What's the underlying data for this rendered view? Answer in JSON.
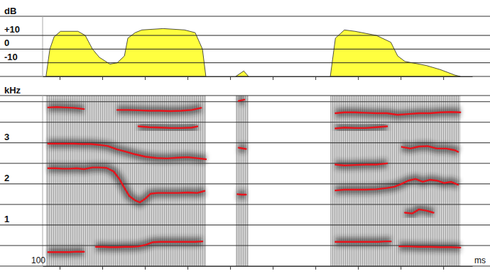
{
  "chart_data": [
    {
      "type": "area",
      "ylabel": "dB",
      "color": "#ffff3f",
      "grid": true,
      "tick_labels": "y",
      "xlim": [
        60,
        1068
      ],
      "xticks": [
        100,
        200,
        300,
        400,
        500,
        600,
        700,
        800,
        900,
        1000
      ],
      "ylim": [
        -20,
        24
      ],
      "yticks": [
        -10,
        0,
        {
          "value": 10,
          "label": "+10"
        }
      ],
      "x": [
        68,
        77,
        87,
        102,
        143,
        160,
        177,
        193,
        218,
        235,
        252,
        260,
        277,
        293,
        343,
        393,
        418,
        435,
        443,
        480,
        513,
        532,
        543,
        640,
        735,
        747,
        768,
        793,
        843,
        877,
        893,
        910,
        960,
        993,
        1027,
        1040
      ],
      "values": [
        -20,
        0,
        9,
        13,
        13,
        10,
        0,
        -6,
        -11,
        -10,
        -5,
        8,
        12,
        14,
        15,
        14,
        12,
        0,
        -20,
        null,
        -20,
        -16,
        -20,
        null,
        -20,
        8,
        14,
        13,
        10,
        5,
        -5,
        -9,
        -12,
        -15,
        -19,
        -20
      ]
    },
    {
      "type": "line",
      "ylabel": "kHz",
      "xlabel": "ms",
      "annotations": [
        "100"
      ],
      "color": "#e8141c",
      "grid": true,
      "tick_labels": "y",
      "xlim": [
        60,
        1068
      ],
      "xticks": [
        100,
        200,
        300,
        400,
        500,
        600,
        700,
        800,
        900,
        1000
      ],
      "ylim": [
        0,
        4.15
      ],
      "yticks": [
        1,
        2,
        3
      ],
      "minor_yticks": [
        0.5,
        1.5,
        2.5,
        3.5,
        4
      ],
      "series": [
        {
          "x": [
            73,
            90,
            107,
            123,
            140,
            157,
            170,
            185,
            202,
            218,
            235,
            252,
            268,
            285,
            302,
            318,
            335,
            352,
            368,
            385,
            402,
            418,
            435,
            590,
            747,
            763,
            780,
            797,
            813,
            830,
            847,
            863,
            877,
            887,
            897,
            918,
            943,
            968,
            993,
            1018,
            1040
          ],
          "values": [
            0.34,
            0.34,
            0.34,
            0.34,
            0.35,
            0.35,
            null,
            0.47,
            0.47,
            0.46,
            0.46,
            0.47,
            0.47,
            0.48,
            0.52,
            0.58,
            0.59,
            0.59,
            0.59,
            0.59,
            0.59,
            0.59,
            0.6,
            null,
            0.59,
            0.59,
            0.59,
            0.59,
            0.59,
            0.59,
            0.59,
            0.6,
            0.6,
            null,
            0.48,
            0.48,
            0.47,
            0.47,
            0.46,
            0.46,
            0.45
          ]
        },
        {
          "x": [
            73,
            90,
            107,
            123,
            140,
            157,
            177,
            193,
            210,
            227,
            240,
            252,
            263,
            277,
            288,
            302,
            313,
            330,
            352,
            377,
            402,
            423,
            440,
            480,
            517,
            527,
            537,
            600,
            747,
            768,
            793,
            818,
            843,
            868,
            885,
            902,
            918,
            935,
            952,
            968,
            985,
            1002,
            1018,
            1035
          ],
          "values": [
            2.38,
            2.38,
            2.37,
            2.37,
            2.38,
            2.36,
            2.4,
            2.4,
            2.39,
            2.3,
            2.12,
            1.9,
            1.71,
            1.6,
            1.55,
            1.65,
            1.76,
            1.78,
            1.78,
            1.78,
            1.79,
            1.78,
            1.83,
            null,
            1.75,
            1.74,
            1.74,
            null,
            1.84,
            1.86,
            1.86,
            1.86,
            1.87,
            1.9,
            1.93,
            2.0,
            2.08,
            2.12,
            2.05,
            2.1,
            2.08,
            2.02,
            2.05,
            1.98
          ]
        },
        {
          "x": [
            73,
            93,
            113,
            133,
            153,
            173,
            193,
            213,
            235,
            257,
            277,
            302,
            327,
            352,
            377,
            402,
            427,
            443,
            480,
            520,
            537,
            600,
            747,
            768,
            793,
            818,
            843,
            868,
            880,
            903,
            923,
            943,
            963,
            985,
            1007,
            1027,
            1035
          ],
          "values": [
            2.98,
            2.98,
            2.98,
            2.98,
            2.97,
            2.97,
            2.95,
            2.92,
            2.84,
            2.78,
            2.72,
            2.66,
            2.63,
            2.62,
            2.64,
            2.65,
            2.62,
            2.6,
            null,
            2.88,
            2.85,
            null,
            2.47,
            2.45,
            2.46,
            2.47,
            2.47,
            2.5,
            null,
            2.9,
            2.86,
            2.91,
            2.92,
            2.86,
            2.86,
            2.82,
            2.78
          ]
        },
        {
          "x": [
            285,
            310,
            335,
            360,
            385,
            410,
            423,
            600,
            747,
            768,
            793,
            818,
            843,
            868
          ],
          "values": [
            3.4,
            3.38,
            3.37,
            3.36,
            3.36,
            3.37,
            3.4,
            null,
            3.35,
            3.37,
            3.36,
            3.36,
            3.38,
            3.4
          ]
        },
        {
          "x": [
            73,
            93,
            113,
            133,
            157,
            200,
            235,
            260,
            285,
            310,
            335,
            360,
            385,
            410,
            432,
            480,
            520,
            533,
            600,
            747,
            768,
            793,
            818,
            843,
            868,
            893,
            918,
            943,
            968,
            993,
            1018,
            1040
          ],
          "values": [
            3.86,
            3.87,
            3.86,
            3.85,
            3.82,
            null,
            3.8,
            3.8,
            3.79,
            3.78,
            3.78,
            3.77,
            3.78,
            3.8,
            3.85,
            null,
            4.02,
            4.05,
            null,
            3.72,
            3.74,
            3.74,
            3.73,
            3.72,
            3.72,
            3.68,
            3.7,
            3.72,
            3.72,
            3.74,
            3.75,
            3.74
          ]
        },
        {
          "x": [
            910,
            927,
            943,
            960,
            977
          ],
          "values": [
            1.3,
            1.28,
            1.38,
            1.35,
            1.3
          ]
        }
      ]
    }
  ]
}
